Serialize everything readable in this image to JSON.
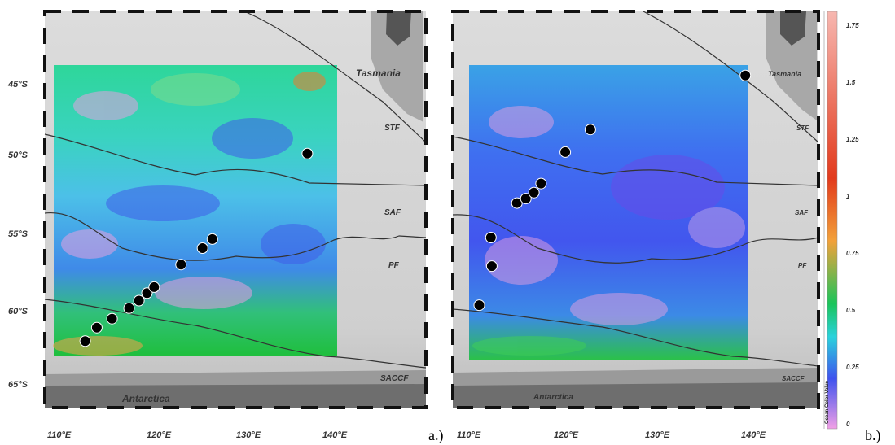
{
  "panels": [
    {
      "label": "a.)",
      "place_names": {
        "tasmania": "Tasmania",
        "antarctica": "Antarctica"
      },
      "fronts": [
        "STF",
        "SAF",
        "PF",
        "SACCF"
      ],
      "lat_ticks": [
        "45°S",
        "50°S",
        "55°S",
        "60°S",
        "65°S"
      ],
      "lon_ticks": [
        "110°E",
        "120°E",
        "130°E",
        "140°E"
      ],
      "stations_lonlat": [
        [
          112.6,
          62.2
        ],
        [
          113.9,
          61.3
        ],
        [
          115.6,
          60.7
        ],
        [
          117.5,
          60.0
        ],
        [
          118.6,
          59.5
        ],
        [
          119.5,
          59.0
        ],
        [
          120.3,
          58.6
        ],
        [
          123.3,
          57.1
        ],
        [
          125.7,
          56.0
        ],
        [
          126.8,
          55.4
        ],
        [
          137.4,
          49.7
        ]
      ]
    },
    {
      "label": "b.)",
      "place_names": {
        "tasmania": "Tasmania",
        "antarctica": "Antarctica"
      },
      "fronts": [
        "STF",
        "SAF",
        "PF",
        "SACCF"
      ],
      "lat_ticks": [],
      "lon_ticks": [
        "110°E",
        "120°E",
        "130°E",
        "140°E"
      ],
      "stations_lonlat": [
        [
          110.5,
          59.8
        ],
        [
          111.9,
          57.2
        ],
        [
          111.8,
          55.3
        ],
        [
          114.7,
          53.0
        ],
        [
          115.7,
          52.7
        ],
        [
          116.6,
          52.3
        ],
        [
          117.4,
          51.7
        ],
        [
          120.1,
          49.6
        ],
        [
          122.9,
          48.1
        ],
        [
          140.2,
          44.5
        ]
      ]
    }
  ],
  "colorbar": {
    "title": "Ocean Color Value",
    "ticks": [
      "1.75",
      "1.5",
      "1.25",
      "1",
      "0.75",
      "0.5",
      "0.25",
      "0"
    ],
    "colors": [
      "#f1a0e6",
      "#3f52ee",
      "#2ad2dc",
      "#1bc45a",
      "#f2a13a",
      "#e23a1c",
      "#f7b7b0"
    ]
  }
}
